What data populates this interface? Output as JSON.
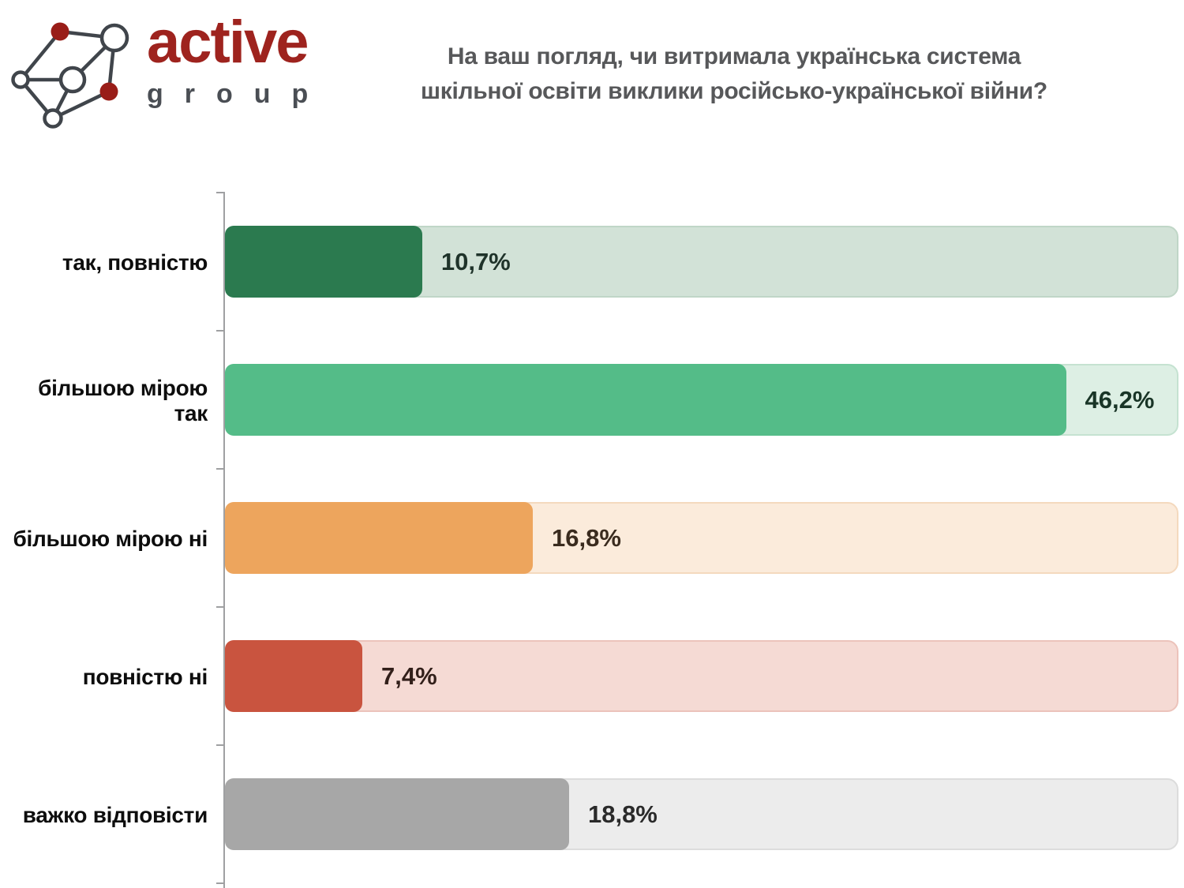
{
  "logo": {
    "brand": "active",
    "sub": "group",
    "brand_color": "#9e231e",
    "sub_color": "#4a4e54",
    "node_red": "#991d18",
    "line_color": "#40454b"
  },
  "title": {
    "line1": "На ваш погляд, чи витримала українська система",
    "line2": "шкільної освіти виклики російсько-української війни?"
  },
  "chart_data": {
    "type": "bar",
    "orientation": "horizontal",
    "title": "На ваш погляд, чи витримала українська система шкільної освіти виклики російсько-української війни?",
    "categories": [
      "так, повністю",
      "більшою мірою так",
      "більшою мірою ні",
      "повністю ні",
      "важко відповісти"
    ],
    "values": [
      10.7,
      46.2,
      16.8,
      7.4,
      18.8
    ],
    "value_labels": [
      "10,7%",
      "46,2%",
      "16,8%",
      "7,4%",
      "18,8%"
    ],
    "xlabel": "",
    "ylabel": "",
    "xlim": [
      0,
      52.4
    ],
    "grid": false,
    "legend": false,
    "bar_colors": [
      "#2b7a4f",
      "#54bc88",
      "#eda55d",
      "#c9543f",
      "#a7a7a7"
    ],
    "track_colors": [
      "#d2e2d7",
      "#ddefe4",
      "#fbebdb",
      "#f5dad4",
      "#ececec"
    ],
    "track_border_colors": [
      "#c0d6c7",
      "#c5e2d1",
      "#f4d9be",
      "#ecc3bb",
      "#dcdcdc"
    ],
    "value_label_colors": [
      "#1f332a",
      "#193527",
      "#3a2b1e",
      "#321f1a",
      "#2a2a2a"
    ],
    "axis_color": "#9fa0a2"
  }
}
